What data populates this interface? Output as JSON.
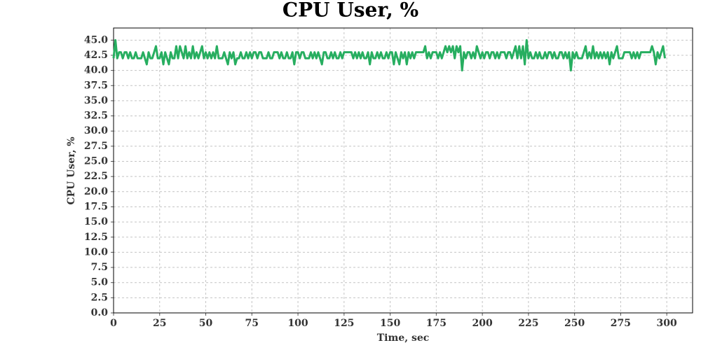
{
  "chart_data": {
    "type": "line",
    "title": "CPU User, %",
    "xlabel": "Time, sec",
    "ylabel": "CPU User, %",
    "x": [
      0,
      1,
      2,
      3,
      4,
      5,
      6,
      7,
      8,
      9,
      10,
      11,
      12,
      13,
      14,
      15,
      16,
      17,
      18,
      19,
      20,
      21,
      22,
      23,
      24,
      25,
      26,
      27,
      28,
      29,
      30,
      31,
      32,
      33,
      34,
      35,
      36,
      37,
      38,
      39,
      40,
      41,
      42,
      43,
      44,
      45,
      46,
      47,
      48,
      49,
      50,
      51,
      52,
      53,
      54,
      55,
      56,
      57,
      58,
      59,
      60,
      61,
      62,
      63,
      64,
      65,
      66,
      67,
      68,
      69,
      70,
      71,
      72,
      73,
      74,
      75,
      76,
      77,
      78,
      79,
      80,
      81,
      82,
      83,
      84,
      85,
      86,
      87,
      88,
      89,
      90,
      91,
      92,
      93,
      94,
      95,
      96,
      97,
      98,
      99,
      100,
      101,
      102,
      103,
      104,
      105,
      106,
      107,
      108,
      109,
      110,
      111,
      112,
      113,
      114,
      115,
      116,
      117,
      118,
      119,
      120,
      121,
      122,
      123,
      124,
      125,
      126,
      127,
      128,
      129,
      130,
      131,
      132,
      133,
      134,
      135,
      136,
      137,
      138,
      139,
      140,
      141,
      142,
      143,
      144,
      145,
      146,
      147,
      148,
      149,
      150,
      151,
      152,
      153,
      154,
      155,
      156,
      157,
      158,
      159,
      160,
      161,
      162,
      163,
      164,
      165,
      166,
      167,
      168,
      169,
      170,
      171,
      172,
      173,
      174,
      175,
      176,
      177,
      178,
      179,
      180,
      181,
      182,
      183,
      184,
      185,
      186,
      187,
      188,
      189,
      190,
      191,
      192,
      193,
      194,
      195,
      196,
      197,
      198,
      199,
      200,
      201,
      202,
      203,
      204,
      205,
      206,
      207,
      208,
      209,
      210,
      211,
      212,
      213,
      214,
      215,
      216,
      217,
      218,
      219,
      220,
      221,
      222,
      223,
      224,
      225,
      226,
      227,
      228,
      229,
      230,
      231,
      232,
      233,
      234,
      235,
      236,
      237,
      238,
      239,
      240,
      241,
      242,
      243,
      244,
      245,
      246,
      247,
      248,
      249,
      250,
      251,
      252,
      253,
      254,
      255,
      256,
      257,
      258,
      259,
      260,
      261,
      262,
      263,
      264,
      265,
      266,
      267,
      268,
      269,
      270,
      271,
      272,
      273,
      274,
      275,
      276,
      277,
      278,
      279,
      280,
      281,
      282,
      283,
      284,
      285,
      286,
      287,
      288,
      289,
      290,
      291,
      292,
      293,
      294,
      295,
      296,
      297,
      298,
      299
    ],
    "series": [
      {
        "name": "CPU User",
        "color": "#27ae60",
        "values": [
          42,
          45,
          42,
          43,
          43,
          42,
          43,
          43,
          42,
          43,
          42,
          42,
          43,
          42,
          42,
          42,
          43,
          42,
          41,
          43,
          42,
          42,
          43,
          44,
          42,
          42,
          43,
          41,
          43,
          42,
          41,
          43,
          42,
          42,
          44,
          42,
          44,
          43,
          42,
          44,
          42,
          43,
          42,
          44,
          42,
          43,
          42,
          43,
          44,
          42,
          43,
          42,
          43,
          42,
          43,
          42,
          44,
          42,
          42,
          42,
          43,
          42,
          41,
          43,
          42,
          43,
          41,
          42,
          42,
          43,
          42,
          42,
          43,
          42,
          43,
          42,
          43,
          43,
          42,
          43,
          43,
          42,
          42,
          42,
          43,
          42,
          42,
          43,
          43,
          43,
          42,
          43,
          42,
          42,
          43,
          42,
          42,
          43,
          41,
          43,
          43,
          42,
          43,
          43,
          42,
          42,
          42,
          43,
          42,
          43,
          42,
          43,
          42,
          41,
          43,
          43,
          42,
          42,
          43,
          42,
          43,
          42,
          42,
          43,
          42,
          43,
          43,
          43,
          43,
          43,
          42,
          43,
          42,
          43,
          42,
          43,
          42,
          42,
          43,
          41,
          43,
          42,
          42,
          43,
          42,
          43,
          42,
          42,
          43,
          42,
          43,
          43,
          41,
          43,
          42,
          41,
          43,
          42,
          43,
          41,
          43,
          42,
          43,
          42,
          43,
          43,
          43,
          43,
          43,
          44,
          42,
          43,
          42,
          43,
          43,
          43,
          42,
          43,
          42,
          43,
          44,
          43,
          44,
          43,
          44,
          42,
          44,
          43,
          44,
          40,
          43,
          42,
          43,
          43,
          42,
          43,
          42,
          44,
          43,
          42,
          43,
          42,
          43,
          43,
          42,
          43,
          43,
          42,
          43,
          42,
          43,
          43,
          43,
          42,
          43,
          43,
          42,
          43,
          44,
          42,
          44,
          42,
          44,
          41,
          45,
          42,
          43,
          42,
          42,
          43,
          42,
          43,
          42,
          42,
          43,
          42,
          43,
          43,
          42,
          43,
          42,
          42,
          43,
          43,
          42,
          43,
          42,
          43,
          40,
          43,
          42,
          43,
          42,
          42,
          42,
          43,
          44,
          42,
          43,
          42,
          44,
          42,
          43,
          42,
          43,
          42,
          43,
          42,
          43,
          41,
          43,
          42,
          43,
          44,
          42,
          42,
          42,
          43,
          43,
          43,
          43,
          42,
          43,
          42,
          43,
          42,
          43,
          43,
          43,
          43,
          43,
          43,
          44,
          43,
          41,
          43,
          42,
          43,
          44,
          42
        ]
      }
    ],
    "xlim": [
      0,
      314
    ],
    "ylim": [
      0,
      47
    ],
    "xticks": [
      0,
      25,
      50,
      75,
      100,
      125,
      150,
      175,
      200,
      225,
      250,
      275,
      300
    ],
    "yticks": [
      {
        "value": 0,
        "label": "0.0"
      },
      {
        "value": 2.5,
        "label": "2.5"
      },
      {
        "value": 5,
        "label": "5.0"
      },
      {
        "value": 7.5,
        "label": "7.5"
      },
      {
        "value": 10,
        "label": "10.0"
      },
      {
        "value": 12.5,
        "label": "12.5"
      },
      {
        "value": 15,
        "label": "15.0"
      },
      {
        "value": 17.5,
        "label": "17.5"
      },
      {
        "value": 20,
        "label": "20.0"
      },
      {
        "value": 22.5,
        "label": "22.5"
      },
      {
        "value": 25,
        "label": "25.0"
      },
      {
        "value": 27.5,
        "label": "27.5"
      },
      {
        "value": 30,
        "label": "30.0"
      },
      {
        "value": 32.5,
        "label": "32.5"
      },
      {
        "value": 35,
        "label": "35.0"
      },
      {
        "value": 37.5,
        "label": "37.5"
      },
      {
        "value": 40,
        "label": "40.0"
      },
      {
        "value": 42.5,
        "label": "42.5"
      },
      {
        "value": 45,
        "label": "45.0"
      }
    ],
    "grid": true
  }
}
